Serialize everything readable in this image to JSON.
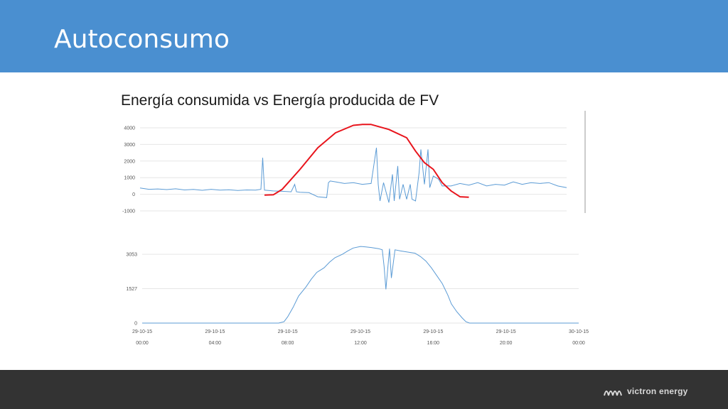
{
  "slide": {
    "title": "Autoconsumo"
  },
  "footer": {
    "logo_text": "victron energy",
    "logo_icon": "victron-logo-icon",
    "background": "#333333"
  },
  "colors": {
    "header": "#4a8fd0",
    "series_line": "#5b9bd5",
    "annotation_curve": "#e8141c",
    "grid": "#e6e6e6"
  },
  "chart_data": [
    {
      "type": "line",
      "title": "Energía consumida vs Energía producida de FV",
      "ylim": [
        -1000,
        4500
      ],
      "yticks": [
        "4000",
        "3000",
        "2000",
        "1000",
        "0",
        "-1000"
      ],
      "yticks_values": [
        4000,
        3000,
        2000,
        1000,
        0,
        -1000
      ],
      "grid": true,
      "series": [
        {
          "x_hours": [
            0,
            0.5,
            1,
            1.5,
            2,
            2.5,
            3,
            3.5,
            4,
            4.5,
            5,
            5.5,
            6,
            6.5,
            6.8,
            6.9,
            7,
            7.5,
            8,
            8.5,
            8.7,
            8.8,
            9,
            9.5,
            10,
            10.5,
            10.6,
            10.7,
            11,
            11.5,
            12,
            12.5,
            13,
            13.3,
            13.4,
            13.5,
            13.7,
            14,
            14.2,
            14.3,
            14.5,
            14.6,
            14.8,
            15,
            15.2,
            15.3,
            15.5,
            15.7,
            15.8,
            16,
            16.2,
            16.3,
            16.5,
            16.8,
            17,
            17.5,
            18,
            18.5,
            19,
            19.5,
            20,
            20.5,
            21,
            21.5,
            22,
            22.5,
            23,
            23.5,
            24
          ],
          "values": [
            380,
            300,
            320,
            280,
            330,
            260,
            290,
            240,
            300,
            250,
            270,
            230,
            260,
            250,
            300,
            2200,
            250,
            200,
            180,
            150,
            600,
            150,
            120,
            100,
            -150,
            -200,
            700,
            800,
            750,
            650,
            700,
            600,
            650,
            2800,
            600,
            -400,
            700,
            -500,
            1200,
            -400,
            1700,
            -300,
            600,
            -300,
            600,
            -300,
            -400,
            1300,
            2700,
            600,
            2700,
            400,
            1100,
            900,
            500,
            500,
            650,
            550,
            700,
            500,
            600,
            550,
            750,
            600,
            700,
            650,
            700,
            500,
            400
          ]
        }
      ],
      "annotation_curve": {
        "description_hours": [
          7,
          7.5,
          8,
          9,
          10,
          11,
          12,
          12.5,
          13,
          14,
          15,
          15.5,
          16,
          16.5,
          17,
          17.5,
          18,
          18.5
        ],
        "values": [
          -50,
          -30,
          300,
          1500,
          2800,
          3700,
          4150,
          4200,
          4200,
          3900,
          3400,
          2600,
          1900,
          1500,
          700,
          200,
          -150,
          -180
        ]
      }
    },
    {
      "type": "area",
      "ylim": [
        0,
        4000
      ],
      "yticks": [
        "3053",
        "1527",
        "0"
      ],
      "yticks_values": [
        3053,
        1527,
        0
      ],
      "xtick_dates": [
        "29-10-15",
        "29-10-15",
        "29-10-15",
        "29-10-15",
        "29-10-15",
        "29-10-15",
        "30-10-15"
      ],
      "xtick_times": [
        "00:00",
        "04:00",
        "08:00",
        "12:00",
        "16:00",
        "20:00",
        "00:00"
      ],
      "grid": true,
      "series": [
        {
          "x_hours": [
            0,
            4,
            7.5,
            7.8,
            8,
            8.3,
            8.6,
            9,
            9.3,
            9.6,
            10,
            10.3,
            10.6,
            11,
            11.3,
            11.6,
            12,
            12.3,
            12.6,
            13,
            13.2,
            13.3,
            13.4,
            13.6,
            13.7,
            13.9,
            14.2,
            14.6,
            15,
            15.3,
            15.6,
            15.9,
            16.2,
            16.5,
            16.8,
            17,
            17.3,
            17.6,
            17.8,
            18,
            20,
            24
          ],
          "values": [
            0,
            0,
            0,
            60,
            280,
            700,
            1200,
            1600,
            1950,
            2250,
            2450,
            2700,
            2900,
            3050,
            3200,
            3330,
            3400,
            3380,
            3350,
            3300,
            3250,
            2500,
            1500,
            3300,
            2000,
            3250,
            3200,
            3150,
            3100,
            2950,
            2750,
            2450,
            2100,
            1750,
            1250,
            850,
            500,
            220,
            60,
            0,
            0,
            0
          ]
        }
      ]
    }
  ]
}
